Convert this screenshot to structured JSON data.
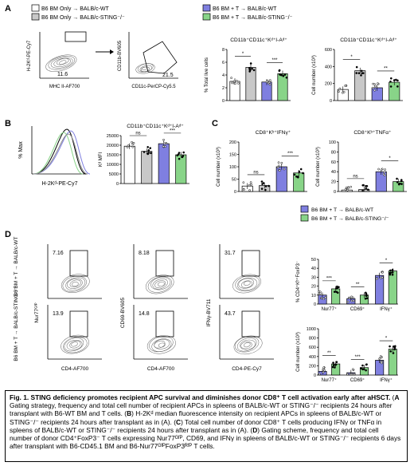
{
  "panels": {
    "A": "A",
    "B": "B",
    "C": "C",
    "D": "D"
  },
  "legend_top": [
    {
      "label": "B6 BM Only → BALB/c-WT",
      "color": "#ffffff"
    },
    {
      "label": "B6 BM Only → BALB/c-STING⁻/⁻",
      "color": "#c8c8c8"
    },
    {
      "label": "B6 BM + T → BALB/c-WT",
      "color": "#7f7fe0"
    },
    {
      "label": "B6 BM + T → BALB/c-STING⁻/⁻",
      "color": "#88d488"
    }
  ],
  "legend_d": [
    {
      "label": "B6 BM + T → BALB/c-WT",
      "color": "#7f7fe0"
    },
    {
      "label": "B6 BM + T → BALB/c-STING⁻/⁻",
      "color": "#88d488"
    }
  ],
  "flow_a": {
    "plot1": {
      "ylabel": "H-2Kᵈ-PE-Cy7",
      "xlabel": "MHC II-AF700",
      "gate_value": "11.6"
    },
    "plot2": {
      "ylabel": "CD11b-BV605",
      "xlabel": "CD11c-PerCP-Cy5.5",
      "gate_value": "21.5"
    }
  },
  "flow_b": {
    "ylabel": "% Max",
    "xlabel": "H-2Kᵈ-PE-Cy7"
  },
  "flow_d": {
    "row_labels": [
      "B6 BM + T → BALB/c-WT",
      "B6 BM + T → BALB/c-STING⁻/⁻"
    ],
    "values": [
      [
        "7.16",
        "8.18",
        "31.7"
      ],
      [
        "13.9",
        "14.8",
        "43.7"
      ]
    ],
    "ylabels": [
      "Nur77ᴳᶠᴾ",
      "CD69-BV605",
      "IFNγ-BV711"
    ],
    "xlabels": [
      "CD4-AF700",
      "CD4-AF700",
      "CD4-PE-Cy7"
    ]
  },
  "charts": {
    "a1": {
      "title": "CD11b⁺CD11c⁺Kᵈ⁺I-Aᵈ⁺",
      "ylabel": "% Total live cells",
      "ylim": [
        0,
        8
      ],
      "ticks": [
        "0",
        "2",
        "4",
        "6",
        "8"
      ],
      "values": [
        3,
        5.2,
        2.9,
        4.2
      ],
      "sig": [
        [
          "*",
          0,
          1
        ],
        [
          "***",
          2,
          3
        ]
      ]
    },
    "a2": {
      "title": "CD11b⁺CD11c⁺Kᵈ⁺I-Aᵈ⁺",
      "ylabel": "Cell number (x10³)",
      "ylim": [
        0,
        600
      ],
      "ticks": [
        "0",
        "200",
        "400",
        "600"
      ],
      "values": [
        130,
        350,
        150,
        215
      ],
      "sig": [
        [
          "*",
          0,
          1
        ],
        [
          "**",
          2,
          3
        ]
      ]
    },
    "b": {
      "title": "CD11b⁺CD11c⁺Kᵈ⁺I-Aᵈ⁺",
      "ylabel": "Kᵈ MFI",
      "ylim": [
        0,
        25000
      ],
      "ticks": [
        "0",
        "5000",
        "10000",
        "15000",
        "20000",
        "25000"
      ],
      "values": [
        19500,
        16800,
        20800,
        15000
      ],
      "sig": [
        [
          "ns",
          0,
          1
        ],
        [
          "***",
          2,
          3
        ]
      ]
    },
    "c1": {
      "title": "CD8⁺Kᵇ⁺IFNγ⁺",
      "ylabel": "Cell number (x10³)",
      "ylim": [
        0,
        200
      ],
      "ticks": [
        "0",
        "50",
        "100",
        "150",
        "200"
      ],
      "values": [
        22,
        24,
        100,
        75
      ],
      "sig": [
        [
          "ns",
          0,
          1
        ],
        [
          "***",
          2,
          3
        ]
      ]
    },
    "c2": {
      "title": "CD8⁺Kᵇ⁺TNFα⁺",
      "ylabel": "Cell number (x10³)",
      "ylim": [
        0,
        100
      ],
      "ticks": [
        "0",
        "20",
        "40",
        "60",
        "80",
        "100"
      ],
      "values": [
        3,
        4,
        40,
        20
      ],
      "sig": [
        [
          "ns",
          0,
          1
        ],
        [
          "*",
          2,
          3
        ]
      ]
    },
    "d1": {
      "ylabel": "% CD4⁺Kᵇ⁺FoxP3⁻",
      "ylim": [
        0,
        50
      ],
      "ticks": [
        "0",
        "10",
        "20",
        "30",
        "40",
        "50"
      ],
      "categories": [
        "Nur77⁺",
        "CD69⁺",
        "IFNγ⁺"
      ],
      "values": [
        [
          10,
          17
        ],
        [
          6,
          10
        ],
        [
          32,
          37
        ]
      ],
      "sig": [
        "***",
        "**",
        "*"
      ]
    },
    "d2": {
      "ylabel": "Cell number (x10³)",
      "ylim": [
        0,
        1000
      ],
      "ticks": [
        "0",
        "200",
        "400",
        "600",
        "800",
        "1000"
      ],
      "categories": [
        "Nur77⁺",
        "CD69⁺",
        "IFNγ⁺"
      ],
      "values": [
        [
          80,
          240
        ],
        [
          50,
          160
        ],
        [
          320,
          560
        ]
      ],
      "sig": [
        "**",
        "***",
        "*"
      ]
    }
  },
  "caption": {
    "title": "Fig. 1. STING deficiency promotes recipient APC survival and diminishes donor CD8⁺ T cell activation early after aHSCT.",
    "parts": [
      [
        "A",
        " Gating strategy, frequency and total cell number of recipient APCs in spleens of BALB/c-WT or STING⁻/⁻ recipients 24 hours after transplant with B6-WT BM and T cells. ("
      ],
      [
        "B",
        ") H-2Kᵈ median fluorescence intensity on recipient APCs in spleens of BALB/c-WT or STING⁻/⁻ recipients 24 hours after transplant as in (A). ("
      ],
      [
        "C",
        ") Total cell number of donor CD8⁺ T cells producing IFNγ or TNFα in spleens of BALB/c-WT or STING⁻/⁻ recipients 24 hours after transplant as in (A). ("
      ],
      [
        "D",
        ") Gating scheme, frequency and total cell number of donor CD4⁺FoxP3⁻ T cells expressing Nur77ᴳᶠᴾ, CD69, and IFNγ in spleens of BALB/c-WT or STING⁻/⁻ recipients 6 days after transplant with B6-CD45.1 BM and B6-Nur77ᴳᶠᴾFoxP3ᴿᶠᴾ T cells."
      ]
    ]
  }
}
